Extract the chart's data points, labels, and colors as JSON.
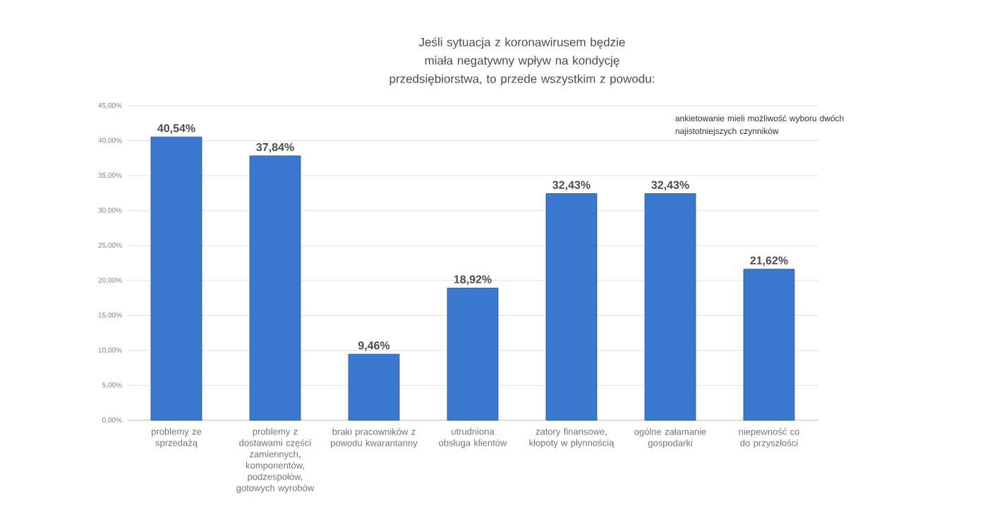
{
  "chart_data": {
    "type": "bar",
    "title": "Jeśli sytuacja z koronawirusem będzie miała negatywny wpływ na kondycję przedsiębiorstwa, to przede wszystkim z powodu:",
    "annotations": [
      "ankietowanie mieli możliwość wyboru dwóch najistotniejszych czynników"
    ],
    "categories": [
      "problemy ze sprzedażą",
      "problemy z dostawami części zamiennych, komponentów, podzespołów, gotowych wyrobów",
      "braki pracowników z powodu kwarantanny",
      "utrudniona obsługa klientów",
      "zatory finansowe, kłopoty w płynnością",
      "ogólne załamanie gospodarki",
      "niepewność co do przyszłości"
    ],
    "values": [
      40.54,
      37.84,
      9.46,
      18.92,
      32.43,
      32.43,
      21.62
    ],
    "value_labels": [
      "40,54%",
      "37,84%",
      "9,46%",
      "18,92%",
      "32,43%",
      "32,43%",
      "21,62%"
    ],
    "color": "#3b78cf",
    "ylim": [
      0,
      45
    ],
    "yticks": [
      {
        "value": 0,
        "label": "0,00%"
      },
      {
        "value": 5,
        "label": "5,00%"
      },
      {
        "value": 10,
        "label": "10,00%"
      },
      {
        "value": 15,
        "label": "15,00%"
      },
      {
        "value": 20,
        "label": "20,00%"
      },
      {
        "value": 25,
        "label": "25,00%"
      },
      {
        "value": 30,
        "label": "30,00%"
      },
      {
        "value": 35,
        "label": "35,00%"
      },
      {
        "value": 40,
        "label": "40,00%"
      },
      {
        "value": 45,
        "label": "45,00%"
      }
    ],
    "grid": "y"
  }
}
